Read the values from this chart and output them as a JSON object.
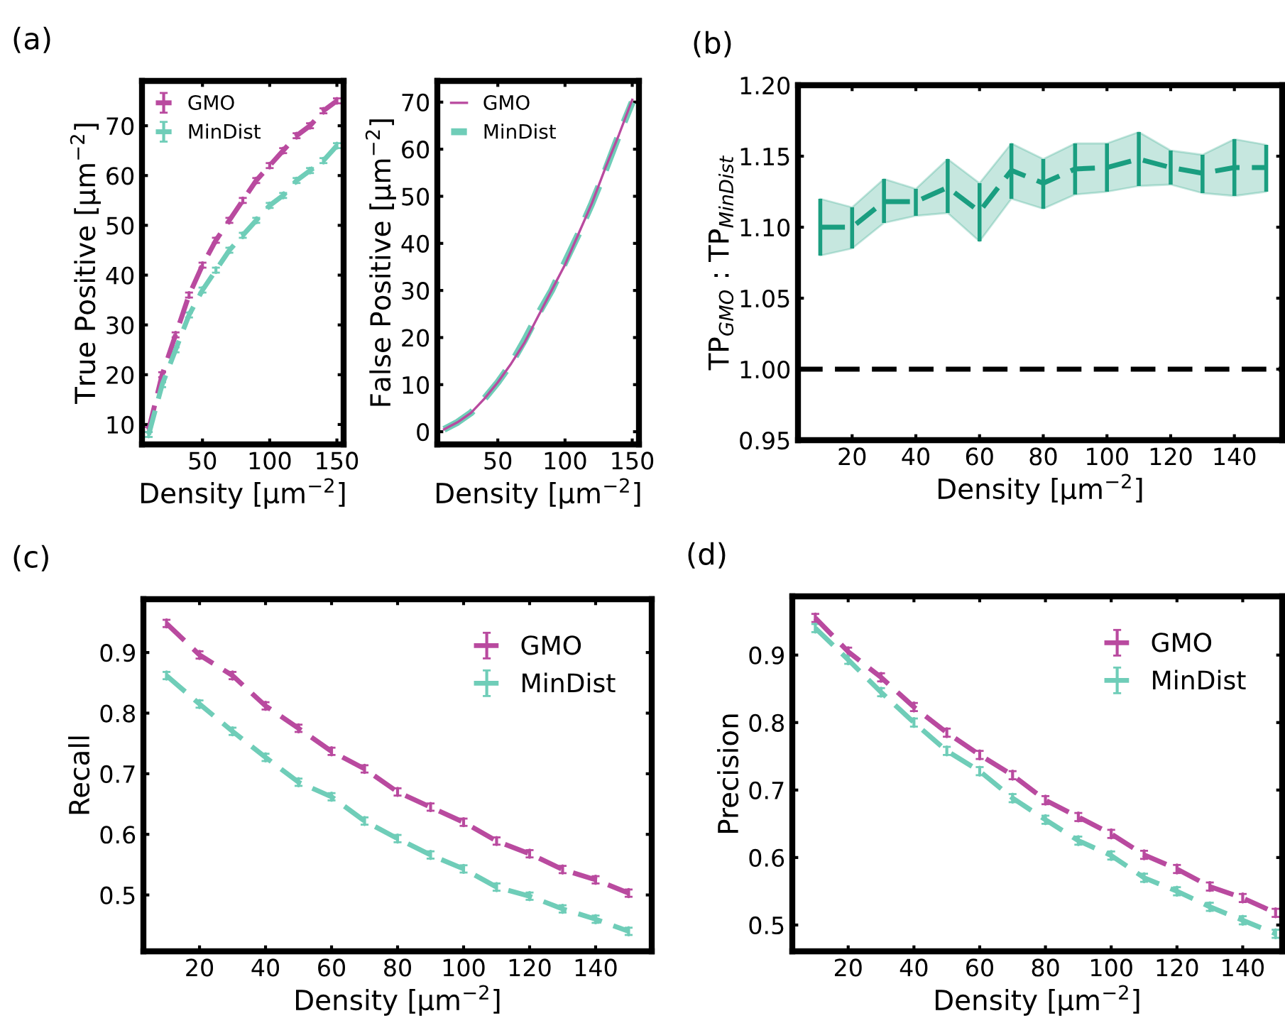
{
  "chart_data": [
    {
      "type": "line",
      "annotations": [
        "(a)"
      ],
      "xlabel": "Density [µm$^{−2}$]",
      "ylabel": "True Positive [µm$^{−2}$]",
      "x": [
        10,
        20,
        30,
        40,
        50,
        60,
        70,
        80,
        90,
        100,
        110,
        120,
        130,
        140,
        150
      ],
      "xlim": [
        5,
        155
      ],
      "ylim": [
        6,
        79
      ],
      "xticks": [
        50,
        100,
        150
      ],
      "yticks": [
        10,
        20,
        30,
        40,
        50,
        60,
        70
      ],
      "line_style": "dashed",
      "legend": "top left",
      "grid": false,
      "series": [
        {
          "name": "GMO",
          "color": "#b94a9f",
          "values": [
            9,
            20,
            28,
            36,
            42,
            47,
            51,
            55,
            59,
            62,
            65,
            68,
            70,
            73,
            75
          ],
          "errors": [
            0.5,
            0.5,
            0.5,
            0.5,
            0.5,
            0.5,
            0.5,
            0.5,
            0.5,
            0.5,
            0.5,
            0.5,
            0.5,
            0.5,
            0.5
          ]
        },
        {
          "name": "MinDist",
          "color": "#6fcdb8",
          "values": [
            8,
            18,
            25,
            32,
            37,
            41,
            45,
            48,
            51,
            54,
            56,
            59,
            61,
            63,
            66
          ],
          "errors": [
            0.5,
            0.5,
            0.5,
            0.5,
            0.5,
            0.5,
            0.5,
            0.5,
            0.5,
            0.5,
            0.5,
            0.5,
            0.5,
            0.5,
            0.5
          ]
        }
      ]
    },
    {
      "type": "line",
      "xlabel": "Density [µm$^{−2}$]",
      "ylabel": "False Positive [µm$^{−2}$]",
      "x": [
        10,
        20,
        30,
        40,
        50,
        60,
        70,
        80,
        90,
        100,
        110,
        120,
        130,
        140,
        150
      ],
      "xlim": [
        5,
        155
      ],
      "ylim": [
        -2.7,
        74.5
      ],
      "xticks": [
        50,
        100,
        150
      ],
      "yticks": [
        0,
        10,
        20,
        30,
        40,
        50,
        60,
        70
      ],
      "line_style": "dashed",
      "legend": "top left",
      "grid": false,
      "series": [
        {
          "name": "GMO",
          "color": "#b94a9f",
          "values": [
            0.5,
            2,
            4,
            7,
            10.5,
            14.5,
            19,
            24.5,
            30,
            35.5,
            42,
            48.5,
            56,
            63,
            70.5
          ],
          "line_style": "solid"
        },
        {
          "name": "MinDist",
          "color": "#6fcdb8",
          "values": [
            0.5,
            2,
            4,
            7,
            10.5,
            14.5,
            19.5,
            25,
            30,
            36,
            42,
            48.5,
            55.5,
            63,
            70
          ]
        }
      ]
    },
    {
      "type": "line",
      "annotations": [
        "(b)"
      ],
      "xlabel": "Density [µm$^{−2}$]",
      "ylabel": "TP$_{GMO}$ : TP$_{MinDist}$",
      "x": [
        10,
        20,
        30,
        40,
        50,
        60,
        70,
        80,
        90,
        100,
        110,
        120,
        130,
        140,
        150
      ],
      "xlim": [
        3,
        155
      ],
      "ylim": [
        0.95,
        1.2
      ],
      "xticks": [
        20,
        40,
        60,
        80,
        100,
        120,
        140
      ],
      "yticks": [
        {
          "value": 0.95,
          "label": "0.95"
        },
        {
          "value": 1.0,
          "label": "1.00"
        },
        {
          "value": 1.05,
          "label": "1.05"
        },
        {
          "value": 1.1,
          "label": "1.10"
        },
        {
          "value": 1.15,
          "label": "1.15"
        },
        {
          "value": 1.2,
          "label": "1.20"
        }
      ],
      "line_style": "dashed",
      "grid": false,
      "ref_lines": [
        {
          "axis": "y",
          "value": 1.0,
          "color": "#000000",
          "line_style": "dashed"
        }
      ],
      "series": [
        {
          "color": "#1a9e80",
          "values": [
            1.1,
            1.1,
            1.118,
            1.118,
            1.128,
            1.111,
            1.14,
            1.131,
            1.141,
            1.142,
            1.148,
            1.142,
            1.138,
            1.142,
            1.142
          ],
          "lower": [
            1.08,
            1.085,
            1.103,
            1.108,
            1.11,
            1.09,
            1.12,
            1.113,
            1.123,
            1.125,
            1.129,
            1.13,
            1.124,
            1.122,
            1.125
          ],
          "upper": [
            1.12,
            1.114,
            1.134,
            1.127,
            1.148,
            1.131,
            1.159,
            1.148,
            1.159,
            1.159,
            1.167,
            1.154,
            1.151,
            1.162,
            1.158
          ],
          "errors": [
            [
              1.08,
              1.12
            ],
            [
              1.085,
              1.114
            ],
            [
              1.103,
              1.134
            ],
            [
              1.108,
              1.127
            ],
            [
              1.11,
              1.148
            ],
            [
              1.09,
              1.131
            ],
            [
              1.12,
              1.159
            ],
            [
              1.113,
              1.148
            ],
            [
              1.123,
              1.159
            ],
            [
              1.125,
              1.159
            ],
            [
              1.129,
              1.167
            ],
            [
              1.13,
              1.154
            ],
            [
              1.124,
              1.151
            ],
            [
              1.122,
              1.162
            ],
            [
              1.125,
              1.158
            ]
          ]
        }
      ]
    },
    {
      "type": "line",
      "annotations": [
        "(c)"
      ],
      "xlabel": "Density [µm$^{−2}$]",
      "ylabel": "Recall",
      "x": [
        10,
        20,
        30,
        40,
        50,
        60,
        70,
        80,
        90,
        100,
        110,
        120,
        130,
        140,
        150
      ],
      "xlim": [
        3,
        157
      ],
      "ylim": [
        0.407,
        0.988
      ],
      "xticks": [
        20,
        40,
        60,
        80,
        100,
        120,
        140
      ],
      "yticks": [
        0.5,
        0.6,
        0.7,
        0.8,
        0.9
      ],
      "line_style": "dashed",
      "legend": "top right",
      "grid": false,
      "series": [
        {
          "name": "GMO",
          "color": "#b94a9f",
          "values": [
            0.948,
            0.896,
            0.862,
            0.812,
            0.775,
            0.737,
            0.708,
            0.67,
            0.645,
            0.62,
            0.589,
            0.568,
            0.542,
            0.525,
            0.503
          ],
          "errors": [
            0.006,
            0.006,
            0.006,
            0.006,
            0.006,
            0.006,
            0.006,
            0.006,
            0.006,
            0.006,
            0.006,
            0.006,
            0.006,
            0.006,
            0.006
          ]
        },
        {
          "name": "MinDist",
          "color": "#6fcdb8",
          "values": [
            0.862,
            0.815,
            0.77,
            0.727,
            0.686,
            0.662,
            0.622,
            0.593,
            0.566,
            0.543,
            0.513,
            0.498,
            0.477,
            0.46,
            0.44
          ],
          "errors": [
            0.006,
            0.006,
            0.006,
            0.006,
            0.006,
            0.006,
            0.006,
            0.006,
            0.006,
            0.006,
            0.006,
            0.006,
            0.006,
            0.006,
            0.006
          ]
        }
      ]
    },
    {
      "type": "line",
      "annotations": [
        "(d)"
      ],
      "xlabel": "Density [µm$^{−2}$]",
      "ylabel": "Precision",
      "x": [
        10,
        20,
        30,
        40,
        50,
        60,
        70,
        80,
        90,
        100,
        110,
        120,
        130,
        140,
        150
      ],
      "xlim": [
        3,
        152
      ],
      "ylim": [
        0.461,
        0.987
      ],
      "xticks": [
        20,
        40,
        60,
        80,
        100,
        120,
        140
      ],
      "yticks": [
        0.5,
        0.6,
        0.7,
        0.8,
        0.9
      ],
      "line_style": "dashed",
      "legend": "top right",
      "grid": false,
      "series": [
        {
          "name": "GMO",
          "color": "#b94a9f",
          "values": [
            0.955,
            0.905,
            0.867,
            0.823,
            0.785,
            0.752,
            0.722,
            0.685,
            0.66,
            0.635,
            0.604,
            0.583,
            0.557,
            0.54,
            0.518
          ],
          "errors": [
            0.006,
            0.006,
            0.006,
            0.006,
            0.006,
            0.006,
            0.006,
            0.006,
            0.006,
            0.006,
            0.006,
            0.006,
            0.006,
            0.006,
            0.006
          ]
        },
        {
          "name": "MinDist",
          "color": "#6fcdb8",
          "values": [
            0.94,
            0.893,
            0.845,
            0.8,
            0.758,
            0.728,
            0.688,
            0.656,
            0.625,
            0.603,
            0.57,
            0.55,
            0.527,
            0.507,
            0.487
          ],
          "errors": [
            0.006,
            0.006,
            0.006,
            0.006,
            0.006,
            0.006,
            0.006,
            0.006,
            0.006,
            0.006,
            0.006,
            0.006,
            0.006,
            0.006,
            0.006
          ]
        }
      ]
    }
  ]
}
